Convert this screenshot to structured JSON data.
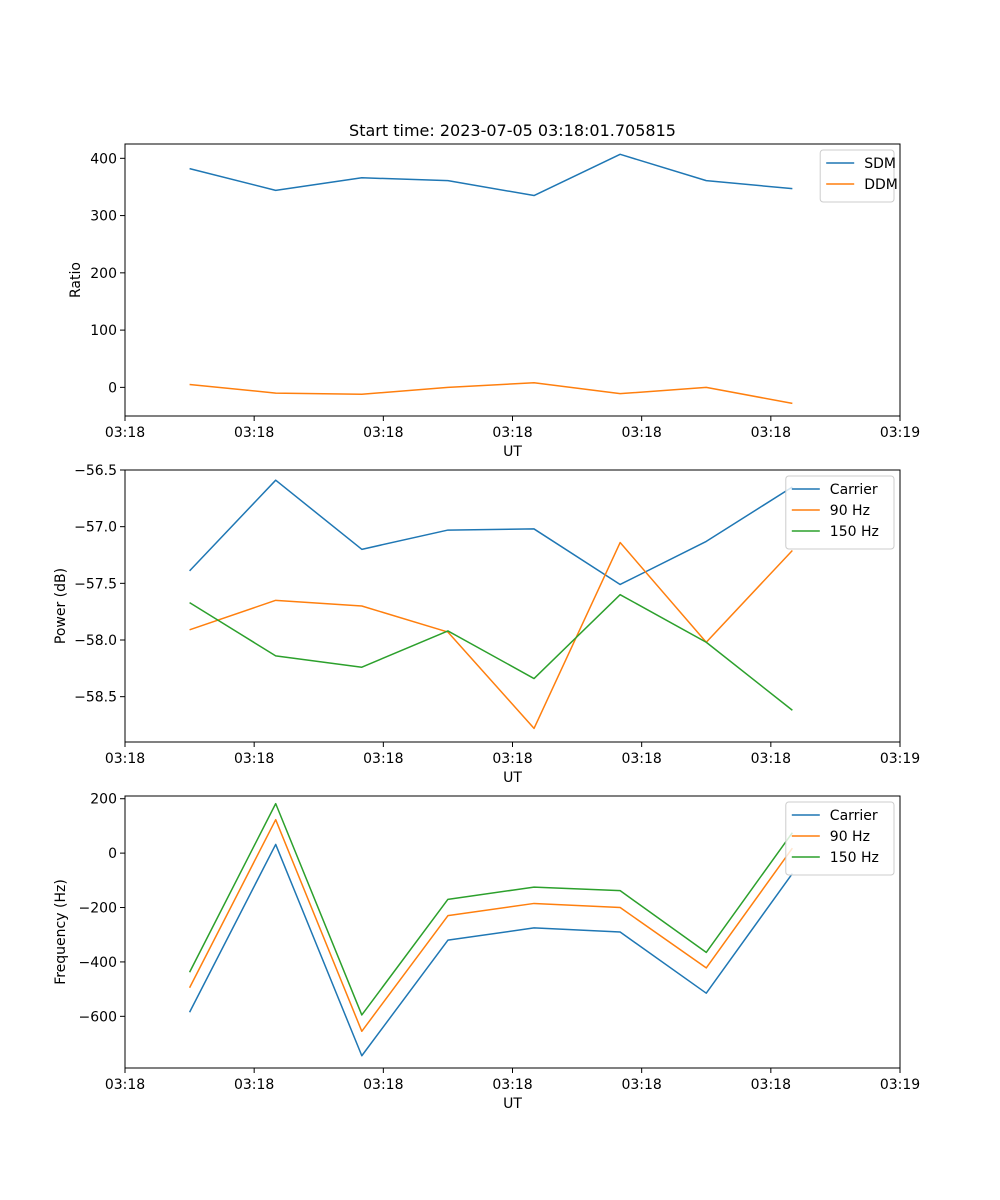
{
  "title": "Start time: 2023-07-05 03:18:01.705815",
  "colors": {
    "blue": "#1f77b4",
    "orange": "#ff7f0e",
    "green": "#2ca02c"
  },
  "chart_data": [
    {
      "type": "line",
      "xlabel": "UT",
      "ylabel": "Ratio",
      "x_tick_labels": [
        "03:18",
        "03:18",
        "03:18",
        "03:18",
        "03:18",
        "03:18",
        "03:18"
      ],
      "x_end_label": "03:19",
      "x_range": [
        -0.75,
        8.25
      ],
      "ylim": [
        -50,
        425
      ],
      "y_ticks": [
        0,
        100,
        200,
        300,
        400
      ],
      "y_tick_labels": [
        "0",
        "100",
        "200",
        "300",
        "400"
      ],
      "legend_position": "top-right",
      "series": [
        {
          "name": "SDM",
          "color": "#1f77b4",
          "values": [
            382,
            344,
            366,
            361,
            335,
            407,
            361,
            347
          ]
        },
        {
          "name": "DDM",
          "color": "#ff7f0e",
          "values": [
            5,
            -10,
            -12,
            0,
            8,
            -11,
            0,
            -28
          ]
        }
      ]
    },
    {
      "type": "line",
      "xlabel": "UT",
      "ylabel": "Power (dB)",
      "x_tick_labels": [
        "03:18",
        "03:18",
        "03:18",
        "03:18",
        "03:18",
        "03:18",
        "03:18"
      ],
      "x_end_label": "03:19",
      "x_range": [
        -0.75,
        8.25
      ],
      "ylim": [
        -58.9,
        -56.5
      ],
      "y_ticks": [
        -58.5,
        -58.0,
        -57.5,
        -57.0,
        -56.5
      ],
      "y_tick_labels": [
        "−58.5",
        "−58.0",
        "−57.5",
        "−57.0",
        "−56.5"
      ],
      "legend_position": "top-right",
      "series": [
        {
          "name": "Carrier",
          "color": "#1f77b4",
          "values": [
            -57.39,
            -56.59,
            -57.2,
            -57.03,
            -57.02,
            -57.51,
            -57.13,
            -56.65
          ]
        },
        {
          "name": "90 Hz",
          "color": "#ff7f0e",
          "values": [
            -57.91,
            -57.65,
            -57.7,
            -57.93,
            -58.78,
            -57.14,
            -58.02,
            -57.21
          ]
        },
        {
          "name": "150 Hz",
          "color": "#2ca02c",
          "values": [
            -57.67,
            -58.14,
            -58.24,
            -57.92,
            -58.34,
            -57.6,
            -58.02,
            -58.62
          ]
        }
      ]
    },
    {
      "type": "line",
      "xlabel": "UT",
      "ylabel": "Frequency (Hz)",
      "x_tick_labels": [
        "03:18",
        "03:18",
        "03:18",
        "03:18",
        "03:18",
        "03:18",
        "03:18"
      ],
      "x_end_label": "03:19",
      "x_range": [
        -0.75,
        8.25
      ],
      "ylim": [
        -790,
        210
      ],
      "y_ticks": [
        -600,
        -400,
        -200,
        0,
        200
      ],
      "y_tick_labels": [
        "−600",
        "−400",
        "−200",
        "0",
        "200"
      ],
      "legend_position": "top-right",
      "series": [
        {
          "name": "Carrier",
          "color": "#1f77b4",
          "values": [
            -585,
            32,
            -745,
            -320,
            -275,
            -290,
            -515,
            -75
          ]
        },
        {
          "name": "90 Hz",
          "color": "#ff7f0e",
          "values": [
            -495,
            123,
            -655,
            -230,
            -185,
            -200,
            -422,
            18
          ]
        },
        {
          "name": "150 Hz",
          "color": "#2ca02c",
          "values": [
            -438,
            182,
            -595,
            -170,
            -125,
            -138,
            -365,
            75
          ]
        }
      ]
    }
  ]
}
